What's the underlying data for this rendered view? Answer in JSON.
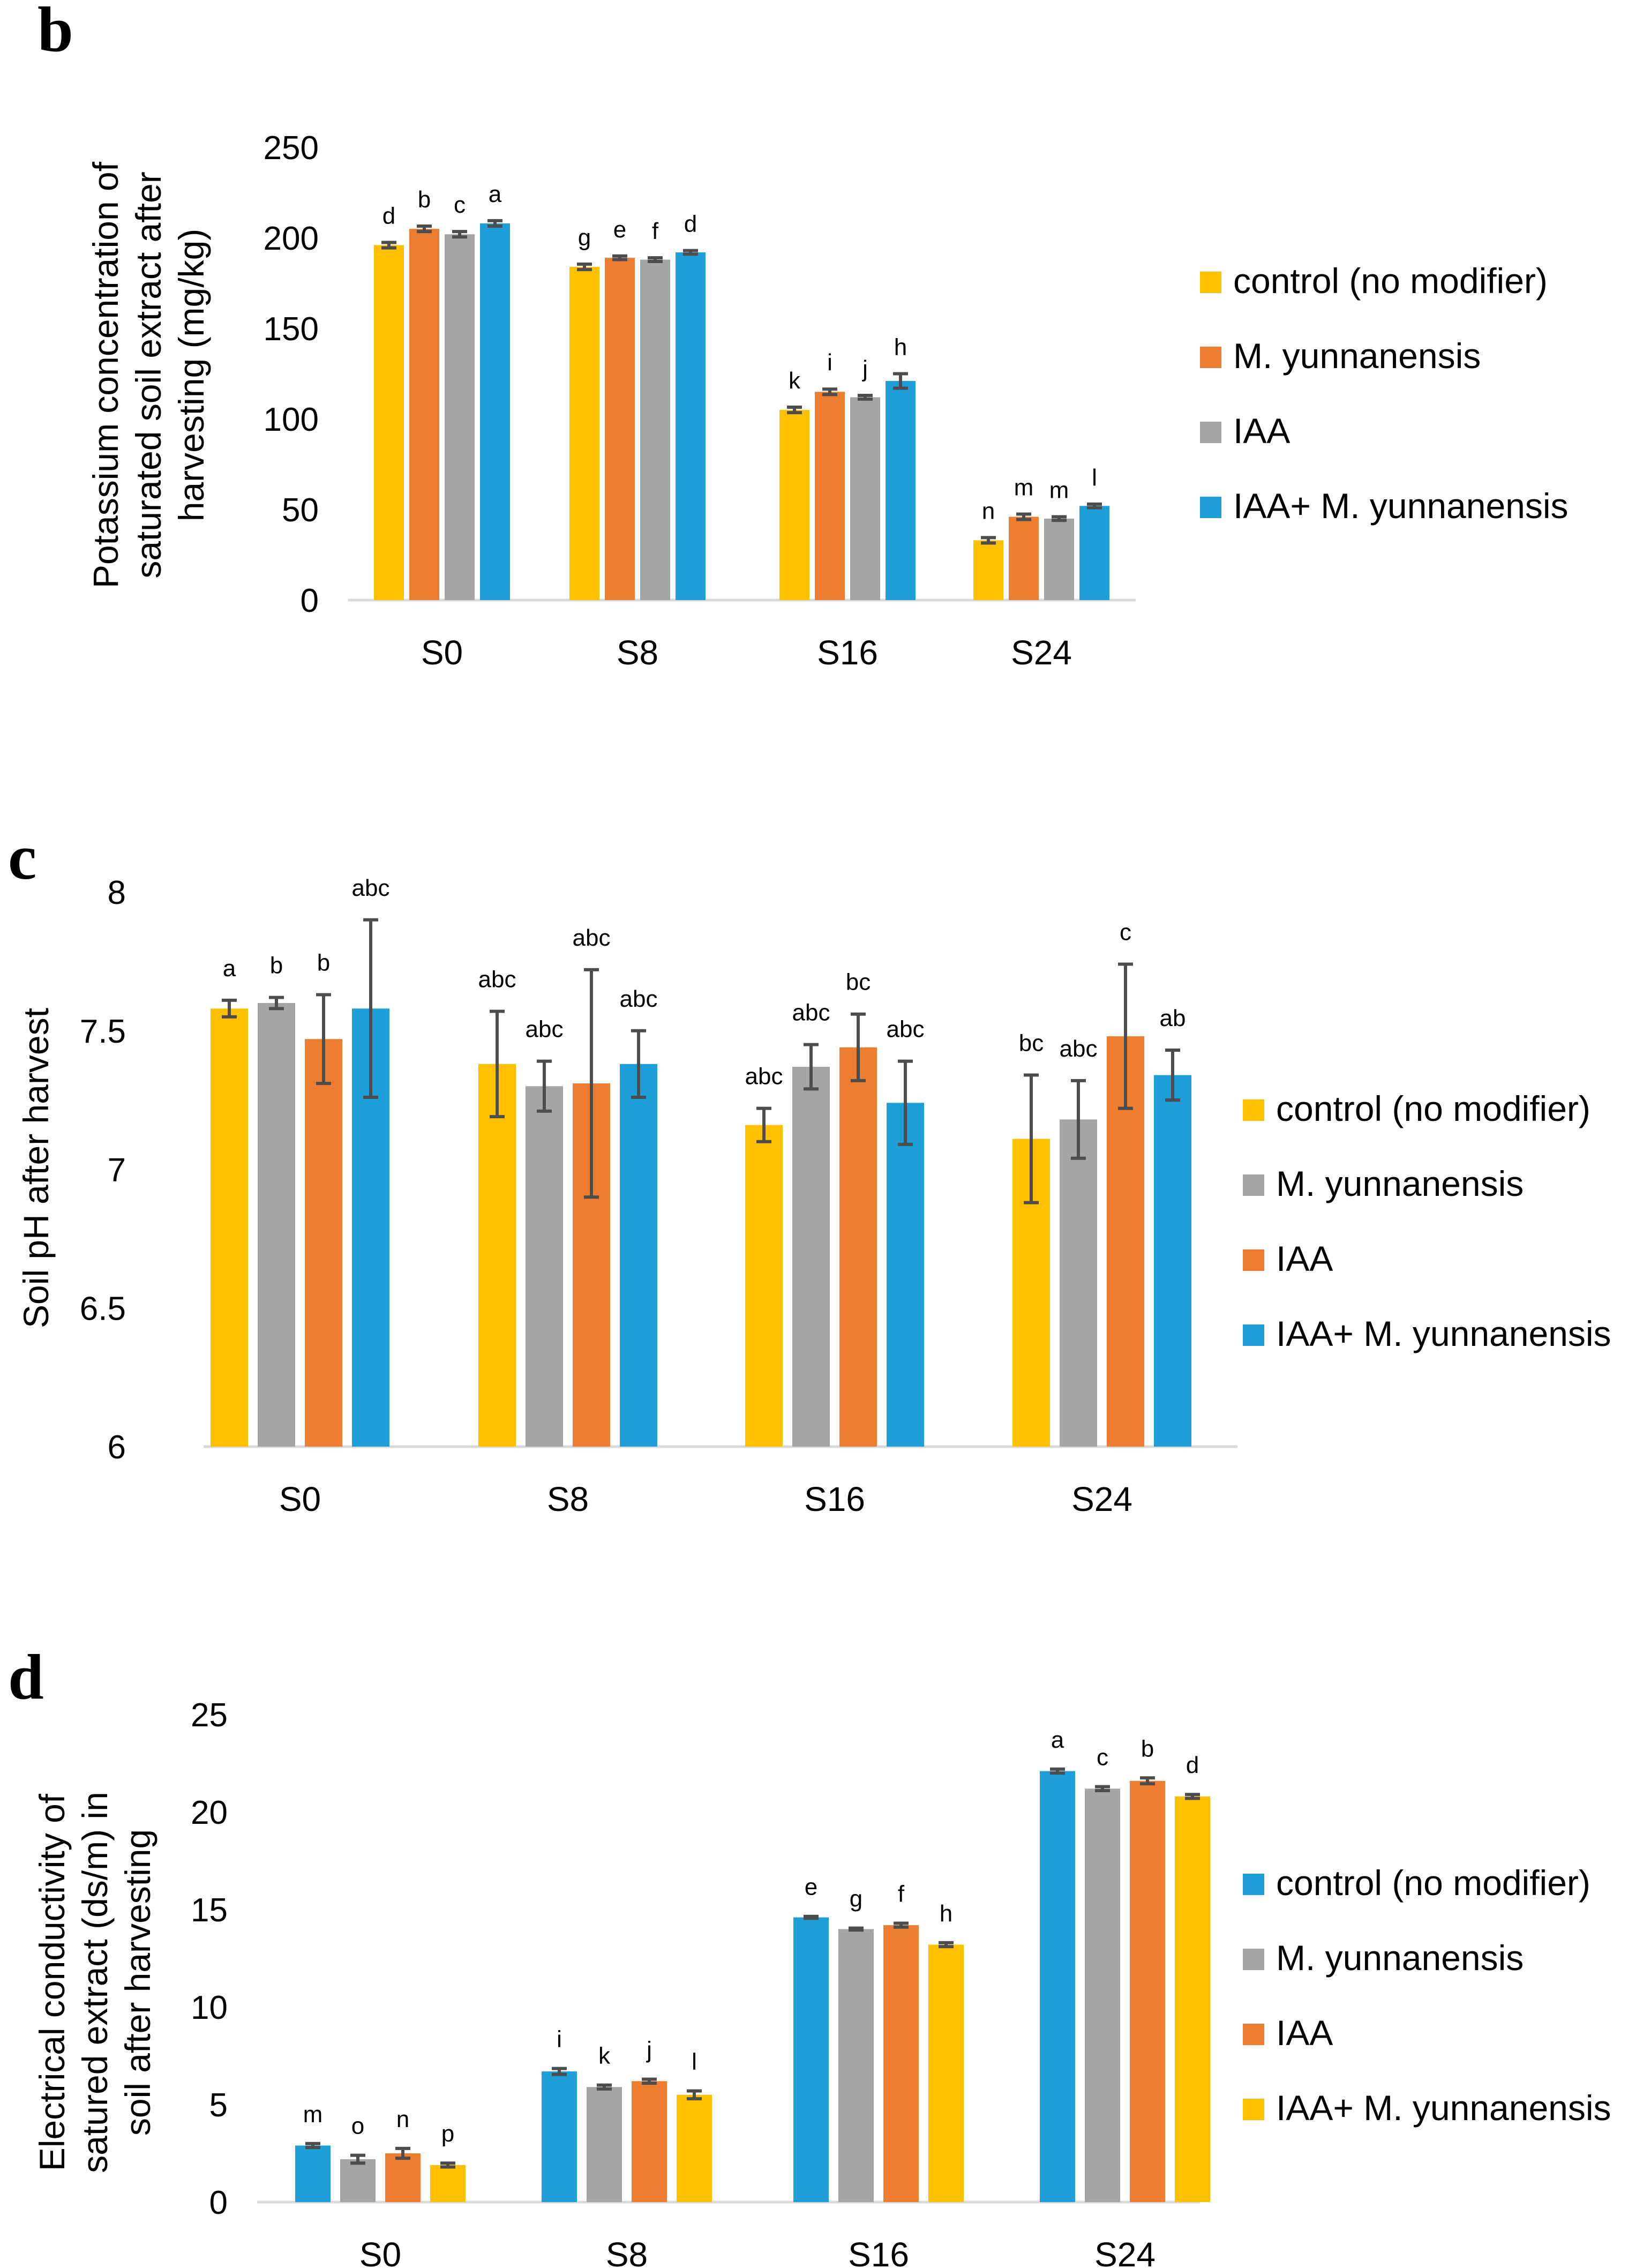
{
  "chart_data": [
    {
      "type": "bar",
      "panel": "b",
      "title": "",
      "ylabel": "Potassium concentration of saturated soil extract after harvesting (mg/kg)",
      "xlabel": "",
      "ylim": [
        0,
        250
      ],
      "yticks": [
        "0",
        "50",
        "100",
        "150",
        "200",
        "250"
      ],
      "categories": [
        "S0",
        "S8",
        "S16",
        "S24"
      ],
      "legend_position": "right",
      "series": [
        {
          "name": "control (no modifier)",
          "color": "#FFC000",
          "values": [
            196,
            184,
            105,
            33
          ],
          "errors": [
            1.5,
            1.5,
            1.5,
            1.5
          ],
          "letters": [
            "d",
            "g",
            "k",
            "n"
          ]
        },
        {
          "name": "M. yunnanensis",
          "color": "#ED7D31",
          "values": [
            205,
            189,
            115,
            46
          ],
          "errors": [
            1.5,
            1.0,
            1.5,
            1.5
          ],
          "letters": [
            "b",
            "e",
            "i",
            "m"
          ]
        },
        {
          "name": "IAA",
          "color": "#A5A5A5",
          "values": [
            202,
            188,
            112,
            45
          ],
          "errors": [
            1.5,
            1.0,
            1.0,
            1.0
          ],
          "letters": [
            "c",
            "f",
            "j",
            "m"
          ]
        },
        {
          "name": "IAA+ M. yunnanensis",
          "color": "#1F9FD8",
          "values": [
            208,
            192,
            121,
            52
          ],
          "errors": [
            1.5,
            1.0,
            4,
            1.0
          ],
          "letters": [
            "a",
            "d",
            "h",
            "l"
          ]
        }
      ]
    },
    {
      "type": "bar",
      "panel": "c",
      "title": "",
      "ylabel": "Soil pH after harvest",
      "xlabel": "",
      "ylim": [
        6,
        8
      ],
      "yticks": [
        "6",
        "6.5",
        "7",
        "7.5",
        "8"
      ],
      "categories": [
        "S0",
        "S8",
        "S16",
        "S24"
      ],
      "legend_position": "right",
      "series": [
        {
          "name": "control (no modifier)",
          "color": "#FFC000",
          "values": [
            7.58,
            7.38,
            7.16,
            7.11
          ],
          "errors": [
            0.03,
            0.19,
            0.06,
            0.23
          ],
          "letters": [
            "a",
            "abc",
            "abc",
            "bc"
          ]
        },
        {
          "name": "M. yunnanensis",
          "color": "#A5A5A5",
          "values": [
            7.6,
            7.3,
            7.37,
            7.18
          ],
          "errors": [
            0.02,
            0.09,
            0.08,
            0.14
          ],
          "letters": [
            "b",
            "abc",
            "abc",
            "abc"
          ]
        },
        {
          "name": "IAA",
          "color": "#ED7D31",
          "values": [
            7.47,
            7.31,
            7.44,
            7.48
          ],
          "errors": [
            0.16,
            0.41,
            0.12,
            0.26
          ],
          "letters": [
            "b",
            "abc",
            "bc",
            "c"
          ]
        },
        {
          "name": "IAA+ M. yunnanensis",
          "color": "#1F9FD8",
          "values": [
            7.58,
            7.38,
            7.24,
            7.34
          ],
          "errors": [
            0.32,
            0.12,
            0.15,
            0.09
          ],
          "letters": [
            "abc",
            "abc",
            "abc",
            "ab"
          ]
        }
      ]
    },
    {
      "type": "bar",
      "panel": "d",
      "title": "",
      "ylabel": "Electrical conductivity of satured extract (ds/m) in soil after harvesting",
      "xlabel": "",
      "ylim": [
        0,
        25
      ],
      "yticks": [
        "0",
        "5",
        "10",
        "15",
        "20",
        "25"
      ],
      "categories": [
        "S0",
        "S8",
        "S16",
        "S24"
      ],
      "legend_position": "right",
      "series": [
        {
          "name": "control (no modifier)",
          "color": "#1F9FD8",
          "values": [
            2.9,
            6.7,
            14.6,
            22.1
          ],
          "errors": [
            0.1,
            0.15,
            0.05,
            0.1
          ],
          "letters": [
            "m",
            "i",
            "e",
            "a"
          ]
        },
        {
          "name": "M. yunnanensis",
          "color": "#A5A5A5",
          "values": [
            2.2,
            5.9,
            14.0,
            21.2
          ],
          "errors": [
            0.2,
            0.1,
            0.05,
            0.1
          ],
          "letters": [
            "o",
            "k",
            "g",
            "c"
          ]
        },
        {
          "name": "IAA",
          "color": "#ED7D31",
          "values": [
            2.5,
            6.2,
            14.2,
            21.6
          ],
          "errors": [
            0.25,
            0.1,
            0.1,
            0.15
          ],
          "letters": [
            "n",
            "j",
            "f",
            "b"
          ]
        },
        {
          "name": "IAA+ M. yunnanensis",
          "color": "#FFC000",
          "values": [
            1.9,
            5.5,
            13.2,
            20.8
          ],
          "errors": [
            0.1,
            0.2,
            0.1,
            0.1
          ],
          "letters": [
            "p",
            "l",
            "h",
            "d"
          ]
        }
      ]
    }
  ]
}
